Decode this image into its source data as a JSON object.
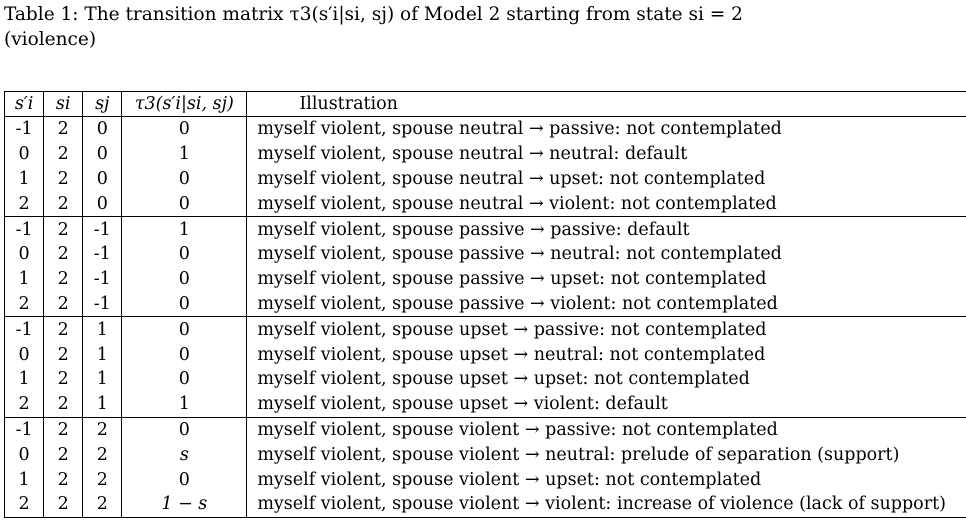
{
  "caption": {
    "line1": "Table 1: The transition matrix τ3(s′i|si, sj) of Model 2 starting from state si = 2",
    "line2": "(violence)"
  },
  "table": {
    "headers": [
      "s′i",
      "si",
      "sj",
      "τ3(s′i|si, sj)",
      "Illustration"
    ],
    "groups": [
      {
        "rows": [
          [
            "-1",
            "2",
            "0",
            "0",
            "myself violent, spouse neutral → passive: not contemplated"
          ],
          [
            "0",
            "2",
            "0",
            "1",
            "myself violent, spouse neutral → neutral: default"
          ],
          [
            "1",
            "2",
            "0",
            "0",
            "myself violent, spouse neutral → upset: not contemplated"
          ],
          [
            "2",
            "2",
            "0",
            "0",
            "myself violent, spouse neutral → violent: not contemplated"
          ]
        ]
      },
      {
        "rows": [
          [
            "-1",
            "2",
            "-1",
            "1",
            "myself violent, spouse passive → passive: default"
          ],
          [
            "0",
            "2",
            "-1",
            "0",
            "myself violent, spouse passive → neutral: not contemplated"
          ],
          [
            "1",
            "2",
            "-1",
            "0",
            "myself violent, spouse passive → upset: not contemplated"
          ],
          [
            "2",
            "2",
            "-1",
            "0",
            "myself violent, spouse passive → violent: not contemplated"
          ]
        ]
      },
      {
        "rows": [
          [
            "-1",
            "2",
            "1",
            "0",
            "myself violent, spouse upset → passive: not contemplated"
          ],
          [
            "0",
            "2",
            "1",
            "0",
            "myself violent, spouse upset → neutral: not contemplated"
          ],
          [
            "1",
            "2",
            "1",
            "0",
            "myself violent, spouse upset → upset: not contemplated"
          ],
          [
            "2",
            "2",
            "1",
            "1",
            "myself violent, spouse upset → violent: default"
          ]
        ]
      },
      {
        "rows": [
          [
            "-1",
            "2",
            "2",
            "0",
            "myself violent, spouse violent → passive: not contemplated"
          ],
          [
            "0",
            "2",
            "2",
            "s",
            "myself violent, spouse violent → neutral: prelude of separation (support)"
          ],
          [
            "1",
            "2",
            "2",
            "0",
            "myself violent, spouse violent → upset: not contemplated"
          ],
          [
            "2",
            "2",
            "2",
            "1 − s",
            "myself violent, spouse violent → violent: increase of violence (lack of support)"
          ]
        ]
      }
    ]
  }
}
